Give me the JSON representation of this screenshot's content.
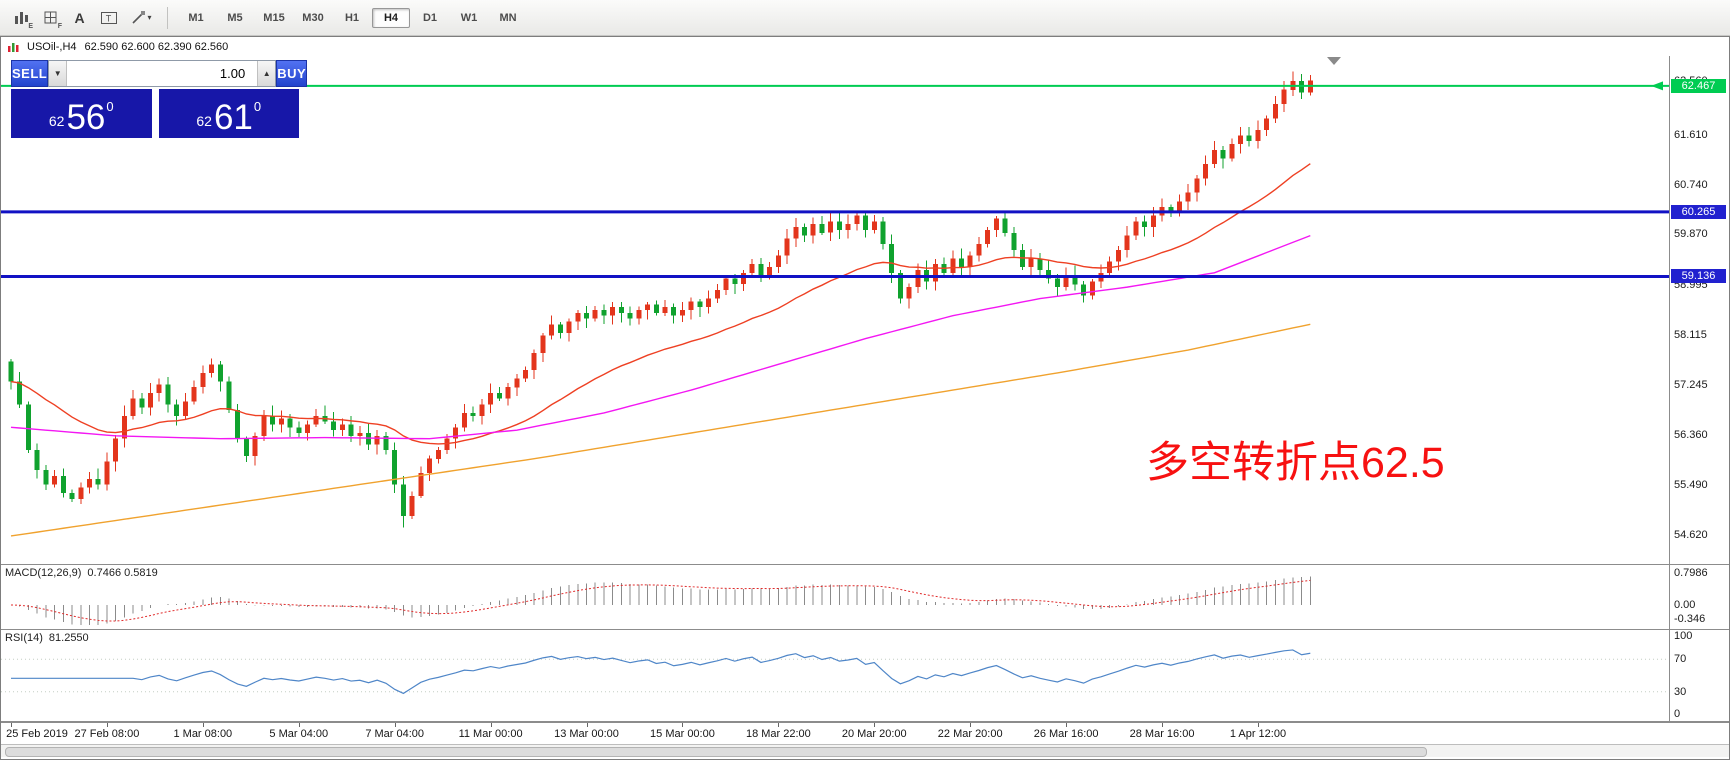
{
  "toolbar": {
    "tools": [
      {
        "name": "bar-chart-e-icon",
        "sub": "E"
      },
      {
        "name": "grid-f-icon",
        "sub": "F"
      },
      {
        "name": "font-a-icon",
        "sub": "A"
      },
      {
        "name": "text-label-icon",
        "sub": "T"
      },
      {
        "name": "drawing-tools-icon",
        "sub": "▾"
      }
    ],
    "timeframes": [
      "M1",
      "M5",
      "M15",
      "M30",
      "H1",
      "H4",
      "D1",
      "W1",
      "MN"
    ],
    "active_timeframe": "H4"
  },
  "window": {
    "title_symbol": "USOil-,H4",
    "ohlc_text": "62.590 62.600 62.390 62.560"
  },
  "trade_panel": {
    "sell_label": "SELL",
    "buy_label": "BUY",
    "volume": "1.00",
    "bid_prefix": "62",
    "bid_big": "56",
    "bid_sup": "0",
    "ask_prefix": "62",
    "ask_big": "61",
    "ask_sup": "0",
    "panel_color": "#1717a8",
    "button_color": "#2f55e0"
  },
  "annotation": {
    "text": "多空转折点62.5",
    "color": "#f71111"
  },
  "chart_data": {
    "type": "candlestick",
    "symbol": "USOil-",
    "timeframe": "H4",
    "y_range": [
      54.25,
      62.85
    ],
    "up_color": "#e3351c",
    "down_color": "#10a22e",
    "first_open": 57.65,
    "closes": [
      57.3,
      56.9,
      56.1,
      55.75,
      55.5,
      55.65,
      55.35,
      55.25,
      55.45,
      55.6,
      55.5,
      55.9,
      56.3,
      56.7,
      57.0,
      56.85,
      57.1,
      57.25,
      56.9,
      56.7,
      56.95,
      57.2,
      57.45,
      57.6,
      57.3,
      56.8,
      56.3,
      56.0,
      56.35,
      56.7,
      56.55,
      56.65,
      56.5,
      56.4,
      56.55,
      56.7,
      56.6,
      56.45,
      56.55,
      56.35,
      56.4,
      56.2,
      56.35,
      56.1,
      55.5,
      54.95,
      55.3,
      55.7,
      55.95,
      56.1,
      56.3,
      56.5,
      56.75,
      56.7,
      56.9,
      57.1,
      57.0,
      57.2,
      57.35,
      57.5,
      57.8,
      58.1,
      58.3,
      58.15,
      58.35,
      58.5,
      58.4,
      58.55,
      58.45,
      58.6,
      58.5,
      58.4,
      58.55,
      58.65,
      58.5,
      58.6,
      58.45,
      58.55,
      58.7,
      58.6,
      58.75,
      58.9,
      59.1,
      59.0,
      59.2,
      59.35,
      59.15,
      59.3,
      59.5,
      59.8,
      60.0,
      59.85,
      60.05,
      59.9,
      60.1,
      59.95,
      60.05,
      60.2,
      59.95,
      60.1,
      59.7,
      59.2,
      58.75,
      58.95,
      59.25,
      59.05,
      59.35,
      59.2,
      59.45,
      59.3,
      59.5,
      59.7,
      59.95,
      60.15,
      59.9,
      59.6,
      59.3,
      59.45,
      59.25,
      59.1,
      58.95,
      59.15,
      59.0,
      58.8,
      59.05,
      59.2,
      59.4,
      59.6,
      59.85,
      60.1,
      60.0,
      60.2,
      60.35,
      60.25,
      60.45,
      60.6,
      60.85,
      61.1,
      61.35,
      61.2,
      61.45,
      61.6,
      61.5,
      61.7,
      61.9,
      62.15,
      62.4,
      62.55,
      62.35,
      62.56
    ],
    "price_axis_labels": [
      {
        "price": 62.56,
        "text": "62.560"
      },
      {
        "price": 61.61,
        "text": "61.610"
      },
      {
        "price": 60.74,
        "text": "60.740"
      },
      {
        "price": 59.87,
        "text": "59.870"
      },
      {
        "price": 58.995,
        "text": "58.995"
      },
      {
        "price": 58.115,
        "text": "58.115"
      },
      {
        "price": 57.245,
        "text": "57.245"
      },
      {
        "price": 56.36,
        "text": "56.360"
      },
      {
        "price": 55.49,
        "text": "55.490"
      },
      {
        "price": 54.62,
        "text": "54.620"
      }
    ],
    "price_tags": [
      {
        "price": 62.467,
        "text": "62.467",
        "bg": "#00cc52"
      },
      {
        "price": 60.265,
        "text": "60.265",
        "bg": "#2121cf"
      },
      {
        "price": 59.136,
        "text": "59.136",
        "bg": "#2121cf"
      }
    ],
    "hlines": [
      {
        "price": 62.467,
        "color": "#00cc52",
        "width": 2
      },
      {
        "price": 60.265,
        "color": "#1111c4",
        "width": 3
      },
      {
        "price": 59.136,
        "color": "#1111c4",
        "width": 3
      }
    ],
    "ma_lines": [
      {
        "name": "fast-ma",
        "mode": "ema",
        "period": 28,
        "color": "#ee4023"
      },
      {
        "name": "mid-ma",
        "mode": "points",
        "color": "#f317f3",
        "points": [
          [
            0,
            56.5
          ],
          [
            12,
            56.35
          ],
          [
            24,
            56.3
          ],
          [
            36,
            56.32
          ],
          [
            48,
            56.3
          ],
          [
            58,
            56.45
          ],
          [
            68,
            56.75
          ],
          [
            78,
            57.15
          ],
          [
            88,
            57.6
          ],
          [
            98,
            58.05
          ],
          [
            108,
            58.45
          ],
          [
            118,
            58.75
          ],
          [
            128,
            58.95
          ],
          [
            138,
            59.2
          ],
          [
            149,
            59.85
          ]
        ]
      },
      {
        "name": "slow-ma",
        "mode": "points",
        "color": "#f0a22e",
        "points": [
          [
            0,
            54.6
          ],
          [
            20,
            55.05
          ],
          [
            40,
            55.5
          ],
          [
            60,
            55.95
          ],
          [
            80,
            56.45
          ],
          [
            100,
            56.95
          ],
          [
            120,
            57.45
          ],
          [
            135,
            57.85
          ],
          [
            149,
            58.3
          ]
        ]
      }
    ],
    "time_labels": [
      {
        "bar": 0,
        "text": "25 Feb 2019"
      },
      {
        "bar": 11,
        "text": "27 Feb 08:00"
      },
      {
        "bar": 22,
        "text": "1 Mar 08:00"
      },
      {
        "bar": 33,
        "text": "5 Mar 04:00"
      },
      {
        "bar": 44,
        "text": "7 Mar 04:00"
      },
      {
        "bar": 55,
        "text": "11 Mar 00:00"
      },
      {
        "bar": 66,
        "text": "13 Mar 00:00"
      },
      {
        "bar": 77,
        "text": "15 Mar 00:00"
      },
      {
        "bar": 88,
        "text": "18 Mar 22:00"
      },
      {
        "bar": 99,
        "text": "20 Mar 20:00"
      },
      {
        "bar": 110,
        "text": "22 Mar 20:00"
      },
      {
        "bar": 121,
        "text": "26 Mar 16:00"
      },
      {
        "bar": 132,
        "text": "28 Mar 16:00"
      },
      {
        "bar": 143,
        "text": "1 Apr 12:00"
      }
    ]
  },
  "macd": {
    "label": "MACD(12,26,9)",
    "values_text": "0.7466 0.5819",
    "fast": 12,
    "slow": 26,
    "signal": 9,
    "range": [
      -0.5,
      0.9
    ],
    "bar_color": "#8b8b8b",
    "signal_color": "#e02a2a",
    "axis_labels": [
      {
        "value": 0.7986,
        "text": "0.7986"
      },
      {
        "value": 0.0,
        "text": "0.00"
      },
      {
        "value": -0.346,
        "text": "-0.346"
      }
    ]
  },
  "rsi": {
    "label": "RSI(14)",
    "value_text": "81.2550",
    "period": 14,
    "range": [
      0,
      100
    ],
    "levels": [
      70,
      30
    ],
    "line_color": "#4f86c8",
    "axis_labels": [
      {
        "value": 100,
        "text": "100"
      },
      {
        "value": 70,
        "text": "70"
      },
      {
        "value": 30,
        "text": "30"
      },
      {
        "value": 0,
        "text": "0"
      }
    ]
  }
}
